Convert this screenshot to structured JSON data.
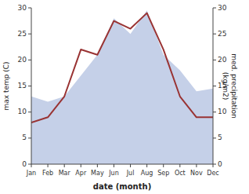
{
  "chart_data": {
    "type": "line",
    "x_label": "date (month)",
    "y_label": "max temp (C)",
    "y2_label": "med. precipitation\n(kg/m2)",
    "categories": [
      "Jan",
      "Feb",
      "Mar",
      "Apr",
      "May",
      "Jun",
      "Jul",
      "Aug",
      "Sep",
      "Oct",
      "Nov",
      "Dec"
    ],
    "series": [
      {
        "type": "area",
        "axis": "y2",
        "color": "#c5d0e8",
        "values": [
          13.0,
          12.0,
          13.0,
          17.0,
          21.0,
          28.0,
          25.0,
          29.5,
          21.0,
          18.0,
          14.0,
          14.5
        ]
      },
      {
        "type": "line",
        "color": "#993333",
        "values": [
          8.0,
          9.0,
          13.0,
          22.0,
          21.0,
          27.5,
          26.0,
          29.0,
          22.0,
          13.0,
          9.0,
          9.0
        ]
      }
    ],
    "ylim": [
      0,
      30
    ],
    "yticks": [
      0,
      5,
      10,
      15,
      20,
      25,
      30
    ],
    "y2lim": [
      0,
      30
    ],
    "y2ticks": [
      0,
      5,
      10,
      15,
      20,
      25,
      30
    ],
    "grid": false
  }
}
